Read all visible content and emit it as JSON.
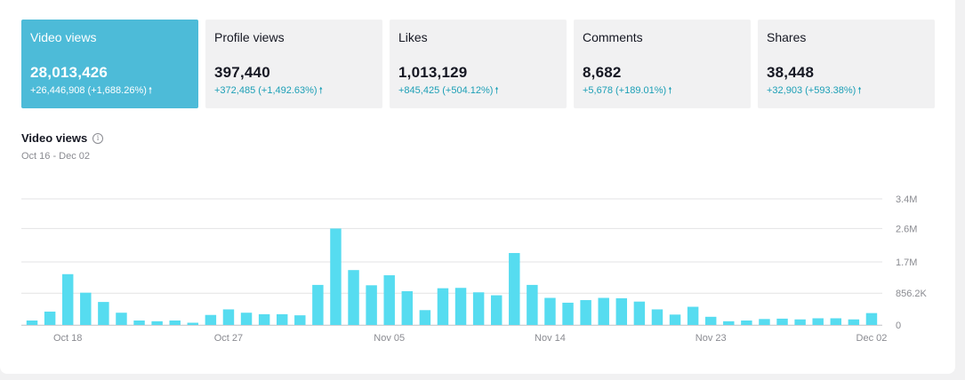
{
  "cards": [
    {
      "label": "Video views",
      "value": "28,013,426",
      "delta": "+26,446,908 (+1,688.26%)",
      "active": true
    },
    {
      "label": "Profile views",
      "value": "397,440",
      "delta": "+372,485 (+1,492.63%)",
      "active": false
    },
    {
      "label": "Likes",
      "value": "1,013,129",
      "delta": "+845,425 (+504.12%)",
      "active": false
    },
    {
      "label": "Comments",
      "value": "8,682",
      "delta": "+5,678 (+189.01%)",
      "active": false
    },
    {
      "label": "Shares",
      "value": "38,448",
      "delta": "+32,903 (+593.38%)",
      "active": false
    }
  ],
  "delta_arrow": "🠕",
  "chart_header": {
    "title": "Video views",
    "info_icon": "info-icon",
    "date_range": "Oct 16 - Dec 02"
  },
  "colors": {
    "accent": "#4dbbd8",
    "bar": "#56dcf0",
    "grid": "#e3e3e4",
    "delta": "#1c9fb6"
  },
  "chart_data": {
    "type": "bar",
    "title": "",
    "xlabel": "",
    "ylabel": "",
    "ylim": [
      0,
      3400000
    ],
    "y_ticks": [
      {
        "value": 0,
        "label": "0"
      },
      {
        "value": 856200,
        "label": "856.2K"
      },
      {
        "value": 1700000,
        "label": "1.7M"
      },
      {
        "value": 2600000,
        "label": "2.6M"
      },
      {
        "value": 3400000,
        "label": "3.4M"
      }
    ],
    "x_tick_labels": [
      {
        "index": 2,
        "label": "Oct 18"
      },
      {
        "index": 11,
        "label": "Oct 27"
      },
      {
        "index": 20,
        "label": "Nov 05"
      },
      {
        "index": 29,
        "label": "Nov 14"
      },
      {
        "index": 38,
        "label": "Nov 23"
      },
      {
        "index": 47,
        "label": "Dec 02"
      }
    ],
    "categories": [
      "Oct 16",
      "Oct 17",
      "Oct 18",
      "Oct 19",
      "Oct 20",
      "Oct 21",
      "Oct 22",
      "Oct 23",
      "Oct 24",
      "Oct 25",
      "Oct 26",
      "Oct 27",
      "Oct 28",
      "Oct 29",
      "Oct 30",
      "Oct 31",
      "Nov 01",
      "Nov 02",
      "Nov 03",
      "Nov 04",
      "Nov 05",
      "Nov 06",
      "Nov 07",
      "Nov 08",
      "Nov 09",
      "Nov 10",
      "Nov 11",
      "Nov 12",
      "Nov 13",
      "Nov 14",
      "Nov 15",
      "Nov 16",
      "Nov 17",
      "Nov 18",
      "Nov 19",
      "Nov 20",
      "Nov 21",
      "Nov 22",
      "Nov 23",
      "Nov 24",
      "Nov 25",
      "Nov 26",
      "Nov 27",
      "Nov 28",
      "Nov 29",
      "Nov 30",
      "Dec 01",
      "Dec 02"
    ],
    "values": [
      120000,
      360000,
      1370000,
      870000,
      620000,
      330000,
      120000,
      100000,
      120000,
      60000,
      270000,
      420000,
      330000,
      290000,
      290000,
      260000,
      1080000,
      2600000,
      1480000,
      1070000,
      1340000,
      910000,
      400000,
      990000,
      1000000,
      880000,
      800000,
      1940000,
      1080000,
      730000,
      600000,
      670000,
      730000,
      720000,
      630000,
      420000,
      280000,
      490000,
      220000,
      100000,
      120000,
      160000,
      170000,
      150000,
      180000,
      180000,
      150000,
      320000
    ],
    "grid": true,
    "legend": "none"
  }
}
